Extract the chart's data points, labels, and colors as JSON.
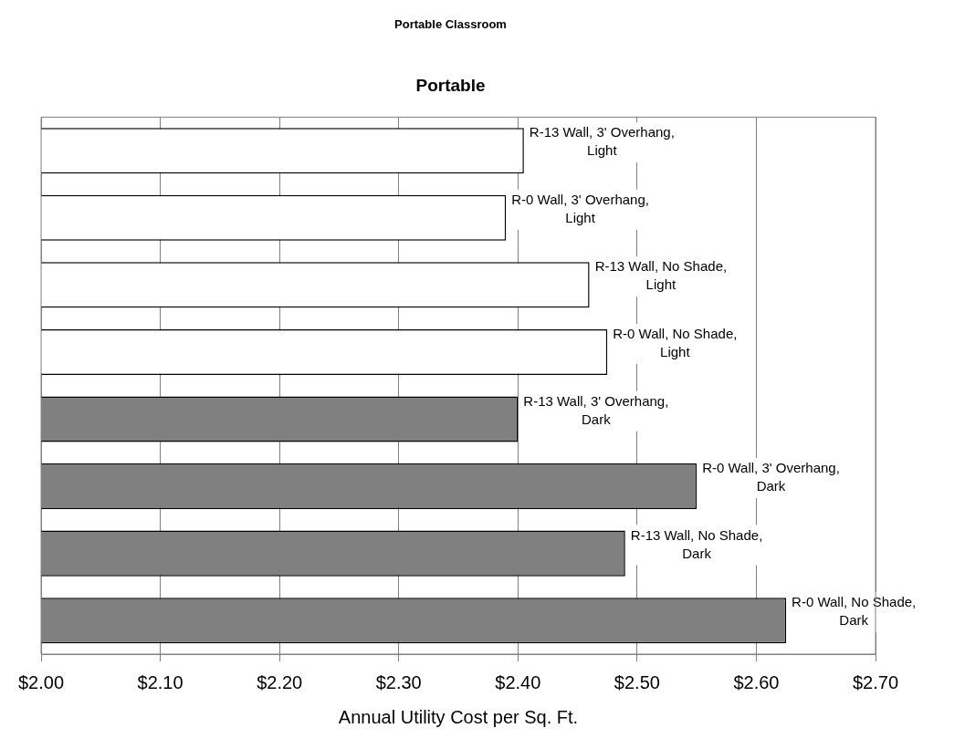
{
  "chart_data": {
    "type": "bar",
    "orientation": "horizontal",
    "title": "Portable Classroom",
    "subtitle": "Portable",
    "xlabel": "Annual Utility Cost per Sq. Ft.",
    "categories": [
      "R-13 Wall, 3' Overhang, Light",
      "R-0 Wall, 3' Overhang, Light",
      "R-13 Wall, No Shade, Light",
      "R-0 Wall, No Shade, Light",
      "R-13 Wall, 3' Overhang, Dark",
      "R-0 Wall, 3' Overhang, Dark",
      "R-13 Wall, No Shade, Dark",
      "R-0 Wall, No Shade, Dark"
    ],
    "values": [
      2.405,
      2.39,
      2.46,
      2.475,
      2.4,
      2.55,
      2.49,
      2.625
    ],
    "colors": [
      "#ffffff",
      "#ffffff",
      "#ffffff",
      "#ffffff",
      "#808080",
      "#808080",
      "#808080",
      "#808080"
    ],
    "xlim": [
      2.0,
      2.7
    ],
    "xticks": [
      {
        "value": 2.0,
        "label": "$2.00"
      },
      {
        "value": 2.1,
        "label": "$2.10"
      },
      {
        "value": 2.2,
        "label": "$2.20"
      },
      {
        "value": 2.3,
        "label": "$2.30"
      },
      {
        "value": 2.4,
        "label": "$2.40"
      },
      {
        "value": 2.5,
        "label": "$2.50"
      },
      {
        "value": 2.6,
        "label": "$2.60"
      },
      {
        "value": 2.7,
        "label": "$2.70"
      }
    ],
    "grid": "x",
    "legend": false
  }
}
